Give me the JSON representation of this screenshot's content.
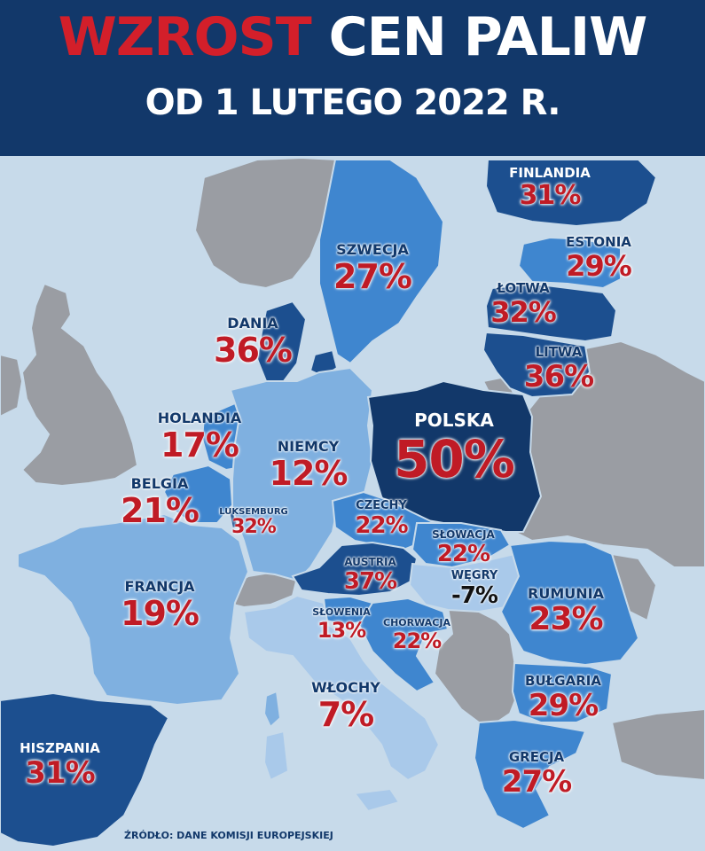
{
  "header": {
    "title_red": "WZROST",
    "title_white": "CEN PALIW",
    "subtitle": "OD 1 LUTEGO 2022 R."
  },
  "legend_colors": {
    "header_bg": "#12386a",
    "title_red": "#d31f2a",
    "percent_red": "#c01b25",
    "label_navy": "#12386a",
    "sea": "#c7daea",
    "non_eu_land": "#9a9da3",
    "dark_blue": "#1c4f8f",
    "mid_blue": "#3f86cf",
    "light_blue": "#7fb0e0",
    "pale_blue": "#a9c9ea"
  },
  "countries": [
    {
      "id": "finlandia",
      "name": "FINLANDIA",
      "value": "31%"
    },
    {
      "id": "szwecja",
      "name": "SZWECJA",
      "value": "27%"
    },
    {
      "id": "estonia",
      "name": "ESTONIA",
      "value": "29%"
    },
    {
      "id": "lotwa",
      "name": "ŁOTWA",
      "value": "32%"
    },
    {
      "id": "litwa",
      "name": "LITWA",
      "value": "36%"
    },
    {
      "id": "dania",
      "name": "DANIA",
      "value": "36%"
    },
    {
      "id": "polska",
      "name": "POLSKA",
      "value": "50%"
    },
    {
      "id": "holandia",
      "name": "HOLANDIA",
      "value": "17%"
    },
    {
      "id": "niemcy",
      "name": "NIEMCY",
      "value": "12%"
    },
    {
      "id": "belgia",
      "name": "BELGIA",
      "value": "21%"
    },
    {
      "id": "luksemburg",
      "name": "LUKSEMBURG",
      "value": "32%"
    },
    {
      "id": "czechy",
      "name": "CZECHY",
      "value": "22%"
    },
    {
      "id": "slowacja",
      "name": "SŁOWACJA",
      "value": "22%"
    },
    {
      "id": "austria",
      "name": "AUSTRIA",
      "value": "37%"
    },
    {
      "id": "wegry",
      "name": "WĘGRY",
      "value": "-7%"
    },
    {
      "id": "francja",
      "name": "FRANCJA",
      "value": "19%"
    },
    {
      "id": "rumunia",
      "name": "RUMUNIA",
      "value": "23%"
    },
    {
      "id": "slowenia",
      "name": "SŁOWENIA",
      "value": "13%"
    },
    {
      "id": "chorwacja",
      "name": "CHORWACJA",
      "value": "22%"
    },
    {
      "id": "wlochy",
      "name": "WŁOCHY",
      "value": "7%"
    },
    {
      "id": "bulgaria",
      "name": "BUŁGARIA",
      "value": "29%"
    },
    {
      "id": "grecja",
      "name": "GRECJA",
      "value": "27%"
    },
    {
      "id": "hiszpania",
      "name": "HISZPANIA",
      "value": "31%"
    }
  ],
  "source": "ŹRÓDŁO: DANE KOMISJI EUROPEJSKIEJ"
}
